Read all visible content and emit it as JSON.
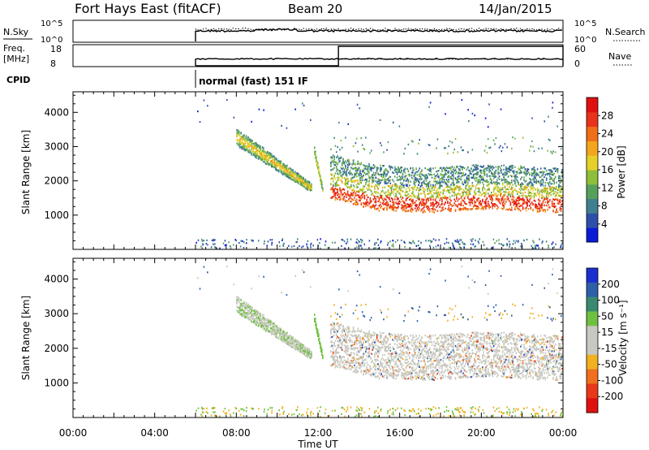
{
  "header": {
    "station": "Fort Hays East (fitACF)",
    "beam": "Beam 20",
    "date": "14/Jan/2015"
  },
  "chart_data": [
    {
      "type": "line",
      "name": "noise-panel",
      "left_label": "N.Sky",
      "right_label": "N.Search",
      "left_ticks": [
        "10^5",
        "10^0"
      ],
      "right_ticks": [
        "10^5",
        "10^0"
      ]
    },
    {
      "type": "line",
      "name": "frequency-panel",
      "left_label_lines": [
        "Freq.",
        "[MHz]"
      ],
      "right_label": "Nave",
      "left_ticks": [
        18,
        8
      ],
      "right_ticks": [
        60,
        0
      ]
    },
    {
      "type": "annotation",
      "name": "cpid",
      "label": "CPID",
      "mode_text": "normal (fast) 151 IF"
    },
    {
      "type": "heatmap",
      "name": "power-panel",
      "ylabel": "Slant Range [km]",
      "yticks": [
        1000,
        2000,
        3000,
        4000
      ],
      "colorbar_label": "Power [dB]",
      "colorbar_ticks": [
        4,
        8,
        12,
        16,
        20,
        24,
        28
      ],
      "colorbar_colors": [
        "#0a1cd6",
        "#2e4fa8",
        "#3f7f8f",
        "#56a05c",
        "#8fbf3a",
        "#e6d028",
        "#f4a51e",
        "#f06e18",
        "#e8331a",
        "#e01010"
      ]
    },
    {
      "type": "heatmap",
      "name": "velocity-panel",
      "ylabel": "Slant Range [km]",
      "yticks": [
        1000,
        2000,
        3000,
        4000
      ],
      "colorbar_label": "Velocity [m s⁻¹]",
      "colorbar_ticks": [
        200,
        100,
        50,
        15,
        -15,
        -50,
        -100,
        -200
      ],
      "colorbar_colors": [
        "#1a2fd0",
        "#2f5fa8",
        "#3a8a70",
        "#6fc040",
        "#c8c8c0",
        "#c8c8c0",
        "#f0b020",
        "#f07020",
        "#e83818",
        "#e01010"
      ]
    },
    {
      "type": "axis",
      "name": "time-axis",
      "xlabel": "Time UT",
      "xticks": [
        "00:00",
        "04:00",
        "08:00",
        "12:00",
        "16:00",
        "20:00",
        "00:00"
      ]
    }
  ]
}
